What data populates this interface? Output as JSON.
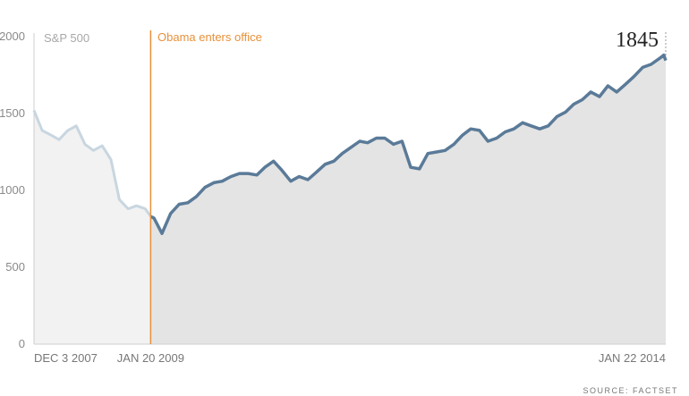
{
  "chart_data": {
    "type": "area",
    "series_label": "S&P 500",
    "y_ticks": [
      "2000",
      "1500",
      "1000",
      "500",
      "0"
    ],
    "y_tick_values": [
      2000,
      1500,
      1000,
      500,
      0
    ],
    "ylim": [
      0,
      2000
    ],
    "x_tick_labels": [
      "DEC 3 2007",
      "JAN 20 2009",
      "JAN 22 2014"
    ],
    "x_tick_values": [
      "2007-12-03",
      "2009-01-20",
      "2014-01-22"
    ],
    "xlim": [
      "2007-12-03",
      "2014-01-22"
    ],
    "event": {
      "date": "2009-01-20",
      "label": "Obama enters office",
      "color": "#e8913a"
    },
    "end_value_label": "1845",
    "source": "SOURCE: FACTSET",
    "colors": {
      "before": "#c8d6e0",
      "after": "#5a7a98",
      "area_before": "#f2f2f2",
      "area_after": "#e4e4e4"
    },
    "series": [
      {
        "x": [
          "2007-12-03",
          "2008-01-01",
          "2008-02-01",
          "2008-03-01",
          "2008-04-01",
          "2008-05-01",
          "2008-06-01",
          "2008-07-01",
          "2008-08-01",
          "2008-09-01",
          "2008-10-01",
          "2008-11-01",
          "2008-12-01",
          "2009-01-01",
          "2009-01-20",
          "2009-02-01",
          "2009-03-01",
          "2009-04-01",
          "2009-05-01",
          "2009-06-01",
          "2009-07-01",
          "2009-08-01",
          "2009-09-01",
          "2009-10-01",
          "2009-11-01",
          "2009-12-01",
          "2010-01-01",
          "2010-02-01",
          "2010-03-01",
          "2010-04-01",
          "2010-05-01",
          "2010-06-01",
          "2010-07-01",
          "2010-08-01",
          "2010-09-01",
          "2010-10-01",
          "2010-11-01",
          "2010-12-01",
          "2011-01-01",
          "2011-02-01",
          "2011-03-01",
          "2011-04-01",
          "2011-05-01",
          "2011-06-01",
          "2011-07-01",
          "2011-08-01",
          "2011-09-01",
          "2011-10-01",
          "2011-11-01",
          "2011-12-01",
          "2012-01-01",
          "2012-02-01",
          "2012-03-01",
          "2012-04-01",
          "2012-05-01",
          "2012-06-01",
          "2012-07-01",
          "2012-08-01",
          "2012-09-01",
          "2012-10-01",
          "2012-11-01",
          "2012-12-01",
          "2013-01-01",
          "2013-02-01",
          "2013-03-01",
          "2013-04-01",
          "2013-05-01",
          "2013-06-01",
          "2013-07-01",
          "2013-08-01",
          "2013-09-01",
          "2013-10-01",
          "2013-11-01",
          "2013-12-01",
          "2014-01-01",
          "2014-01-15",
          "2014-01-22"
        ],
        "values": [
          1520,
          1390,
          1360,
          1330,
          1390,
          1420,
          1300,
          1260,
          1290,
          1200,
          940,
          880,
          900,
          880,
          830,
          820,
          720,
          850,
          910,
          920,
          960,
          1020,
          1050,
          1060,
          1090,
          1110,
          1110,
          1100,
          1150,
          1190,
          1130,
          1060,
          1090,
          1070,
          1120,
          1170,
          1190,
          1240,
          1280,
          1320,
          1310,
          1340,
          1340,
          1300,
          1320,
          1150,
          1140,
          1240,
          1250,
          1260,
          1300,
          1360,
          1400,
          1390,
          1320,
          1340,
          1380,
          1400,
          1440,
          1420,
          1400,
          1420,
          1480,
          1510,
          1560,
          1590,
          1640,
          1610,
          1680,
          1640,
          1690,
          1740,
          1800,
          1820,
          1860,
          1880,
          1845
        ]
      }
    ]
  }
}
